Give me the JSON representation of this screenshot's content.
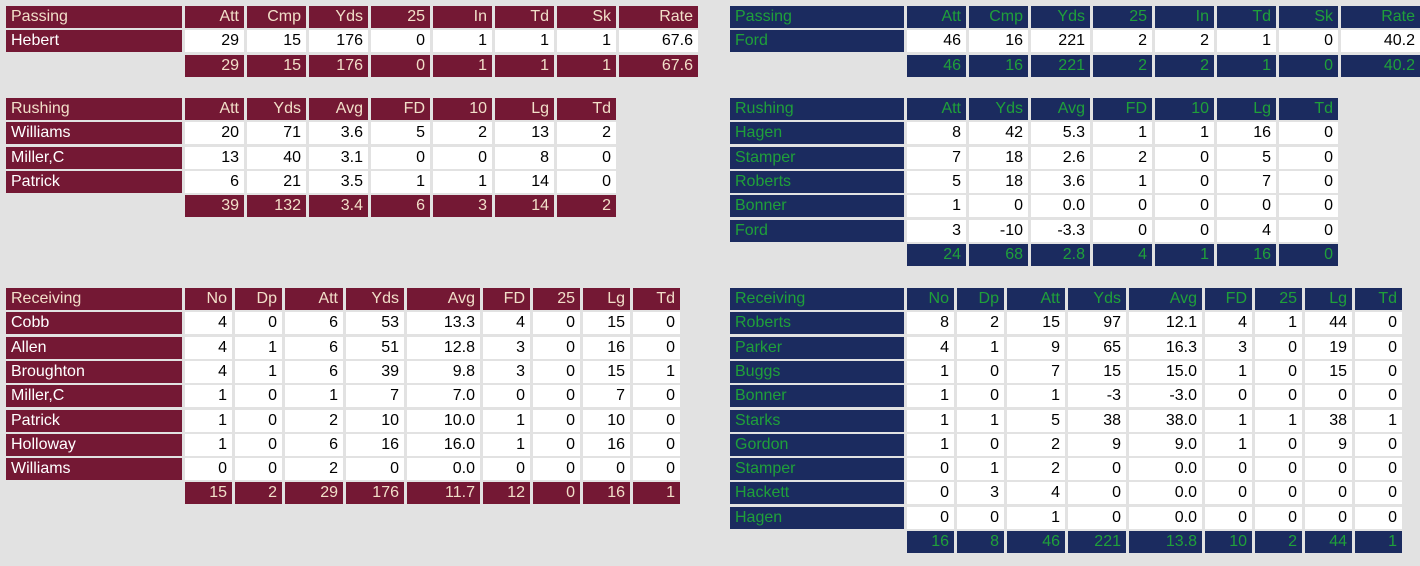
{
  "colors": {
    "maroon": "#741834",
    "maroon_text": "#f2dfc9",
    "navy": "#1b2b5f",
    "navy_text": "#1fa03a",
    "background": "#e2e2e2"
  },
  "home": {
    "passing": {
      "title": "Passing",
      "columns": [
        "Att",
        "Cmp",
        "Yds",
        "25",
        "In",
        "Td",
        "Sk",
        "Rate"
      ],
      "rows": [
        {
          "name": "Hebert",
          "values": [
            "29",
            "15",
            "176",
            "0",
            "1",
            "1",
            "1",
            "67.6"
          ]
        }
      ],
      "totals": [
        "29",
        "15",
        "176",
        "0",
        "1",
        "1",
        "1",
        "67.6"
      ]
    },
    "rushing": {
      "title": "Rushing",
      "columns": [
        "Att",
        "Yds",
        "Avg",
        "FD",
        "10",
        "Lg",
        "Td"
      ],
      "rows": [
        {
          "name": "Williams",
          "values": [
            "20",
            "71",
            "3.6",
            "5",
            "2",
            "13",
            "2"
          ]
        },
        {
          "name": "Miller,C",
          "values": [
            "13",
            "40",
            "3.1",
            "0",
            "0",
            "8",
            "0"
          ]
        },
        {
          "name": "Patrick",
          "values": [
            "6",
            "21",
            "3.5",
            "1",
            "1",
            "14",
            "0"
          ]
        }
      ],
      "totals": [
        "39",
        "132",
        "3.4",
        "6",
        "3",
        "14",
        "2"
      ]
    },
    "receiving": {
      "title": "Receiving",
      "columns": [
        "No",
        "Dp",
        "Att",
        "Yds",
        "Avg",
        "FD",
        "25",
        "Lg",
        "Td"
      ],
      "rows": [
        {
          "name": "Cobb",
          "values": [
            "4",
            "0",
            "6",
            "53",
            "13.3",
            "4",
            "0",
            "15",
            "0"
          ]
        },
        {
          "name": "Allen",
          "values": [
            "4",
            "1",
            "6",
            "51",
            "12.8",
            "3",
            "0",
            "16",
            "0"
          ]
        },
        {
          "name": "Broughton",
          "values": [
            "4",
            "1",
            "6",
            "39",
            "9.8",
            "3",
            "0",
            "15",
            "1"
          ]
        },
        {
          "name": "Miller,C",
          "values": [
            "1",
            "0",
            "1",
            "7",
            "7.0",
            "0",
            "0",
            "7",
            "0"
          ]
        },
        {
          "name": "Patrick",
          "values": [
            "1",
            "0",
            "2",
            "10",
            "10.0",
            "1",
            "0",
            "10",
            "0"
          ]
        },
        {
          "name": "Holloway",
          "values": [
            "1",
            "0",
            "6",
            "16",
            "16.0",
            "1",
            "0",
            "16",
            "0"
          ]
        },
        {
          "name": "Williams",
          "values": [
            "0",
            "0",
            "2",
            "0",
            "0.0",
            "0",
            "0",
            "0",
            "0"
          ]
        }
      ],
      "totals": [
        "15",
        "2",
        "29",
        "176",
        "11.7",
        "12",
        "0",
        "16",
        "1"
      ]
    }
  },
  "away": {
    "passing": {
      "title": "Passing",
      "columns": [
        "Att",
        "Cmp",
        "Yds",
        "25",
        "In",
        "Td",
        "Sk",
        "Rate"
      ],
      "rows": [
        {
          "name": "Ford",
          "values": [
            "46",
            "16",
            "221",
            "2",
            "2",
            "1",
            "0",
            "40.2"
          ]
        }
      ],
      "totals": [
        "46",
        "16",
        "221",
        "2",
        "2",
        "1",
        "0",
        "40.2"
      ]
    },
    "rushing": {
      "title": "Rushing",
      "columns": [
        "Att",
        "Yds",
        "Avg",
        "FD",
        "10",
        "Lg",
        "Td"
      ],
      "rows": [
        {
          "name": "Hagen",
          "values": [
            "8",
            "42",
            "5.3",
            "1",
            "1",
            "16",
            "0"
          ]
        },
        {
          "name": "Stamper",
          "values": [
            "7",
            "18",
            "2.6",
            "2",
            "0",
            "5",
            "0"
          ]
        },
        {
          "name": "Roberts",
          "values": [
            "5",
            "18",
            "3.6",
            "1",
            "0",
            "7",
            "0"
          ]
        },
        {
          "name": "Bonner",
          "values": [
            "1",
            "0",
            "0.0",
            "0",
            "0",
            "0",
            "0"
          ]
        },
        {
          "name": "Ford",
          "values": [
            "3",
            "-10",
            "-3.3",
            "0",
            "0",
            "4",
            "0"
          ]
        }
      ],
      "totals": [
        "24",
        "68",
        "2.8",
        "4",
        "1",
        "16",
        "0"
      ]
    },
    "receiving": {
      "title": "Receiving",
      "columns": [
        "No",
        "Dp",
        "Att",
        "Yds",
        "Avg",
        "FD",
        "25",
        "Lg",
        "Td"
      ],
      "rows": [
        {
          "name": "Roberts",
          "values": [
            "8",
            "2",
            "15",
            "97",
            "12.1",
            "4",
            "1",
            "44",
            "0"
          ]
        },
        {
          "name": "Parker",
          "values": [
            "4",
            "1",
            "9",
            "65",
            "16.3",
            "3",
            "0",
            "19",
            "0"
          ]
        },
        {
          "name": "Buggs",
          "values": [
            "1",
            "0",
            "7",
            "15",
            "15.0",
            "1",
            "0",
            "15",
            "0"
          ]
        },
        {
          "name": "Bonner",
          "values": [
            "1",
            "0",
            "1",
            "-3",
            "-3.0",
            "0",
            "0",
            "0",
            "0"
          ]
        },
        {
          "name": "Starks",
          "values": [
            "1",
            "1",
            "5",
            "38",
            "38.0",
            "1",
            "1",
            "38",
            "1"
          ]
        },
        {
          "name": "Gordon",
          "values": [
            "1",
            "0",
            "2",
            "9",
            "9.0",
            "1",
            "0",
            "9",
            "0"
          ]
        },
        {
          "name": "Stamper",
          "values": [
            "0",
            "1",
            "2",
            "0",
            "0.0",
            "0",
            "0",
            "0",
            "0"
          ]
        },
        {
          "name": "Hackett",
          "values": [
            "0",
            "3",
            "4",
            "0",
            "0.0",
            "0",
            "0",
            "0",
            "0"
          ]
        },
        {
          "name": "Hagen",
          "values": [
            "0",
            "0",
            "1",
            "0",
            "0.0",
            "0",
            "0",
            "0",
            "0"
          ]
        }
      ],
      "totals": [
        "16",
        "8",
        "46",
        "221",
        "13.8",
        "10",
        "2",
        "44",
        "1"
      ]
    }
  }
}
